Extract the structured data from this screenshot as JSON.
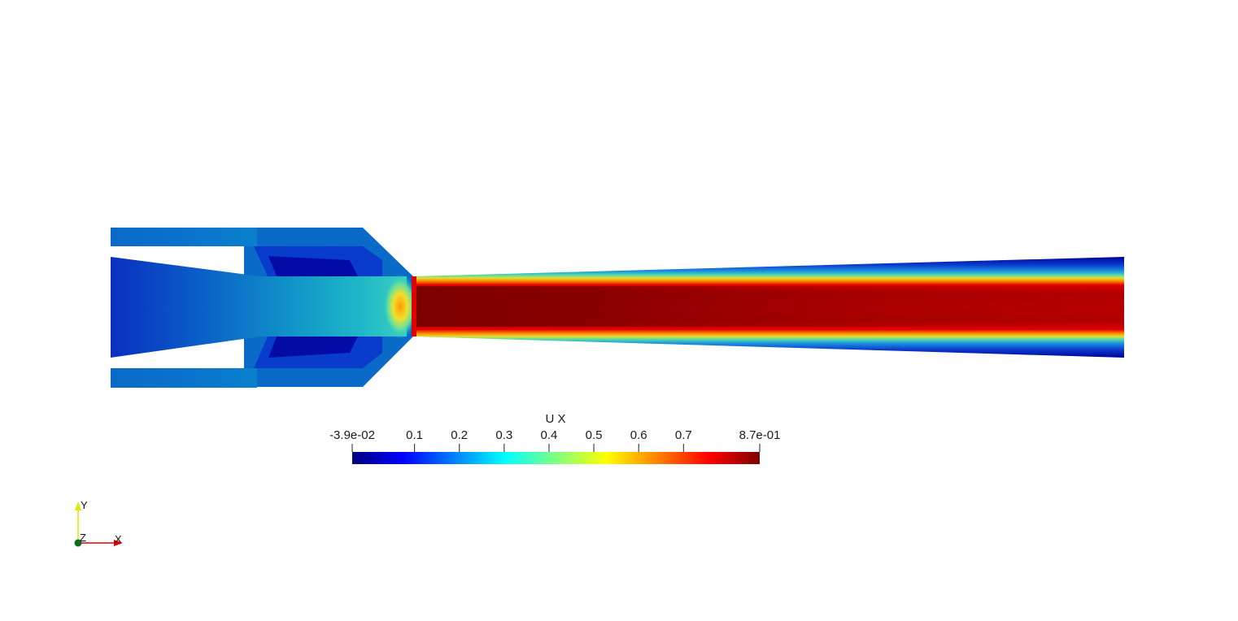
{
  "scalar_bar": {
    "title": "U X",
    "min_label": "-3.9e-02",
    "max_label": "8.7e-01",
    "min_value": -0.039,
    "max_value": 0.87,
    "ticks": [
      {
        "value": 0.1,
        "label": "0.1"
      },
      {
        "value": 0.2,
        "label": "0.2"
      },
      {
        "value": 0.3,
        "label": "0.3"
      },
      {
        "value": 0.4,
        "label": "0.4"
      },
      {
        "value": 0.5,
        "label": "0.5"
      },
      {
        "value": 0.6,
        "label": "0.6"
      },
      {
        "value": 0.7,
        "label": "0.7"
      }
    ],
    "colormap": [
      "#00007f",
      "#0000ff",
      "#0080ff",
      "#00ffff",
      "#80ff80",
      "#ffff00",
      "#ff8000",
      "#ff0000",
      "#7f0000"
    ]
  },
  "orientation_axes": {
    "y_label": "Y",
    "z_label": "Z",
    "x_label": "X",
    "y_color": "#e6e600",
    "x_color": "#e60000",
    "z_color": "#0b6b1f"
  },
  "field_colors": {
    "dark_blue": "#00009a",
    "blue": "#0a3ccc",
    "mid_blue": "#0a6ac8",
    "cyan": "#1aa8d0",
    "green": "#60e0a0",
    "yellow": "#f0e030",
    "orange": "#ff8a00",
    "red": "#e00000",
    "dark_red": "#7a0000"
  }
}
